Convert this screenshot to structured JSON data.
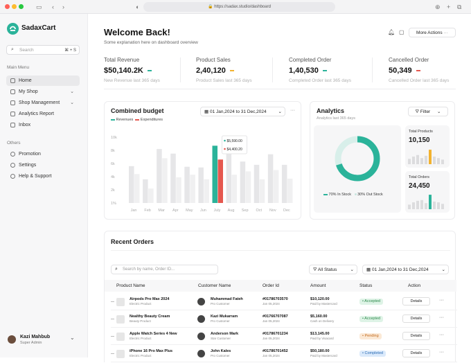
{
  "browser": {
    "url": "https://sadax.studio/dashboard"
  },
  "brand": {
    "name": "SadaxCart",
    "color": "#2bb39a"
  },
  "search": {
    "placeholder": "Search",
    "shortcut": "⌘ + S"
  },
  "nav": {
    "main_title": "Main Menu",
    "items": [
      {
        "label": "Home",
        "icon": "home-icon",
        "active": true
      },
      {
        "label": "My Shop",
        "icon": "shop-icon",
        "chevron": true
      },
      {
        "label": "Shop Management",
        "icon": "cart-icon",
        "chevron": true
      },
      {
        "label": "Analytics Report",
        "icon": "chart-icon"
      },
      {
        "label": "Inbox",
        "icon": "inbox-icon"
      }
    ],
    "others_title": "Others",
    "others": [
      {
        "label": "Promotion",
        "icon": "promotion-icon"
      },
      {
        "label": "Settings",
        "icon": "gear-icon"
      },
      {
        "label": "Help & Support",
        "icon": "help-icon"
      }
    ]
  },
  "user": {
    "name": "Kazi Mahbub",
    "role": "Super Admin"
  },
  "header": {
    "title": "Welcome Back!",
    "subtitle": "Some explanation here on dashboard overview",
    "more_actions": "More Actions"
  },
  "stats": [
    {
      "label": "Total Revenue",
      "value": "$50,140.2K",
      "sub": "New Revenue last 365 days",
      "color": "#2bb39a"
    },
    {
      "label": "Product Sales",
      "value": "2,40,120",
      "sub": "Product Sales last 365 days",
      "color": "#f2b22f"
    },
    {
      "label": "Completed Order",
      "value": "1,40,530",
      "sub": "Completed Order last 365 days",
      "color": "#2bb39a"
    },
    {
      "label": "Cancelled Order",
      "value": "50,349",
      "sub": "Cancelled Order last 365 days",
      "color": "#e5584f"
    }
  ],
  "budget": {
    "title": "Combined budget",
    "date_range": "01 Jan,2024 to 31 Dec,2024",
    "tooltip_top": "$5,590.00",
    "tooltip_bottom": "$4,400.20"
  },
  "chart_data": {
    "type": "bar",
    "title": "Combined budget",
    "categories": [
      "Jan",
      "Feb",
      "Mar",
      "Apr",
      "May",
      "Jun",
      "July",
      "Aug",
      "Sep",
      "Oct",
      "Nov",
      "Dec"
    ],
    "series": [
      {
        "name": "Revenues",
        "values": [
          5.6,
          3.6,
          8.2,
          7.5,
          5.5,
          5.4,
          8.7,
          7.5,
          6.3,
          5.8,
          7.4,
          5.8
        ],
        "highlight_color": "#2bb39a"
      },
      {
        "name": "Expenditures",
        "values": [
          4.4,
          2.2,
          6.8,
          3.9,
          4.3,
          3.6,
          6.6,
          4.3,
          4.8,
          3.6,
          5.0,
          3.7
        ],
        "highlight_color": "#e5584f"
      }
    ],
    "highlight_index": 6,
    "y_ticks": [
      "1%",
      "2k",
      "4k",
      "6k",
      "8k",
      "10k"
    ],
    "ylim": [
      0,
      10
    ],
    "legend": "top-left",
    "grid": false
  },
  "analytics": {
    "title": "Analytics",
    "subtitle": "Analytics last 365 days",
    "filter": "Filter",
    "donut": {
      "in_stock_pct": 70,
      "out_stock_pct": 30,
      "in_label": "70% In Stock",
      "out_label": "30% Out Stock",
      "in_color": "#2bb39a",
      "out_color": "#d8efea"
    },
    "total_products": {
      "label": "Total Products",
      "value": "10,150",
      "bars": [
        0.35,
        0.5,
        0.6,
        0.4,
        0.55,
        0.95,
        0.5,
        0.4,
        0.3
      ],
      "accent_index": 5,
      "accent_color": "#f2b22f"
    },
    "total_orders": {
      "label": "Total Orders",
      "value": "24,450",
      "bars": [
        0.3,
        0.45,
        0.55,
        0.6,
        0.4,
        0.95,
        0.5,
        0.45,
        0.35
      ],
      "accent_index": 5,
      "accent_color": "#2bb39a"
    }
  },
  "orders": {
    "title": "Recent Orders",
    "search_placeholder": "Search by name, Order ID...",
    "status_filter": "All Status",
    "date_range": "01 Jan,2024 to 31 Dec,2024",
    "columns": [
      "Product Name",
      "Customer Name",
      "Order Id",
      "Amount",
      "Status",
      "Action"
    ],
    "details_label": "Details",
    "rows": [
      {
        "product": "Airpods Pro Max 2024",
        "category": "Electric Product",
        "customer": "Muhammad Fateh",
        "ctype": "Pro Customer",
        "order": "#01786703570",
        "date": "Jan 05,2024",
        "amount": "$10,120.00",
        "pay": "Paid by Mastercard",
        "status": "Accepted",
        "status_bg": "#def3e6",
        "status_fg": "#2c8a4b"
      },
      {
        "product": "Nealthy Beauty Cream",
        "category": "Beauty Product",
        "customer": "Kazi Mukarram",
        "ctype": "Pro Customer",
        "order": "#01766707087",
        "date": "Jan 05,2024",
        "amount": "$5,160.00",
        "pay": "Cash on Delivery",
        "status": "Accepted",
        "status_bg": "#def3e6",
        "status_fg": "#2c8a4b"
      },
      {
        "product": "Apple Watch Series 4 New",
        "category": "Electric Product",
        "customer": "Anderson Mark",
        "ctype": "Star Customer",
        "order": "#01786701234",
        "date": "Jan 05,2024",
        "amount": "$13,145.00",
        "pay": "Paid by Visacard",
        "status": "Pending",
        "status_bg": "#fbe9d6",
        "status_fg": "#c26a1e"
      },
      {
        "product": "iPhone 16 Pro Max Plus",
        "category": "Electric Product",
        "customer": "John Kales",
        "ctype": "Pro Customer",
        "order": "#01786701452",
        "date": "Jan 05,2024",
        "amount": "$50,180.00",
        "pay": "Paid by Mastercard",
        "status": "Completed",
        "status_bg": "#dbeafb",
        "status_fg": "#2b6cb5"
      },
      {
        "product": "MI Watch Pro X231 Max",
        "category": "Electric Product",
        "customer": "Saleh Ahmed",
        "ctype": "Pro Customer",
        "order": "#01786712323",
        "date": "Jan 05,2024",
        "amount": "$10,120.00",
        "pay": "Paid by Mastercard",
        "status": "Rejected",
        "status_bg": "#fbe0df",
        "status_fg": "#c0392b"
      }
    ]
  }
}
